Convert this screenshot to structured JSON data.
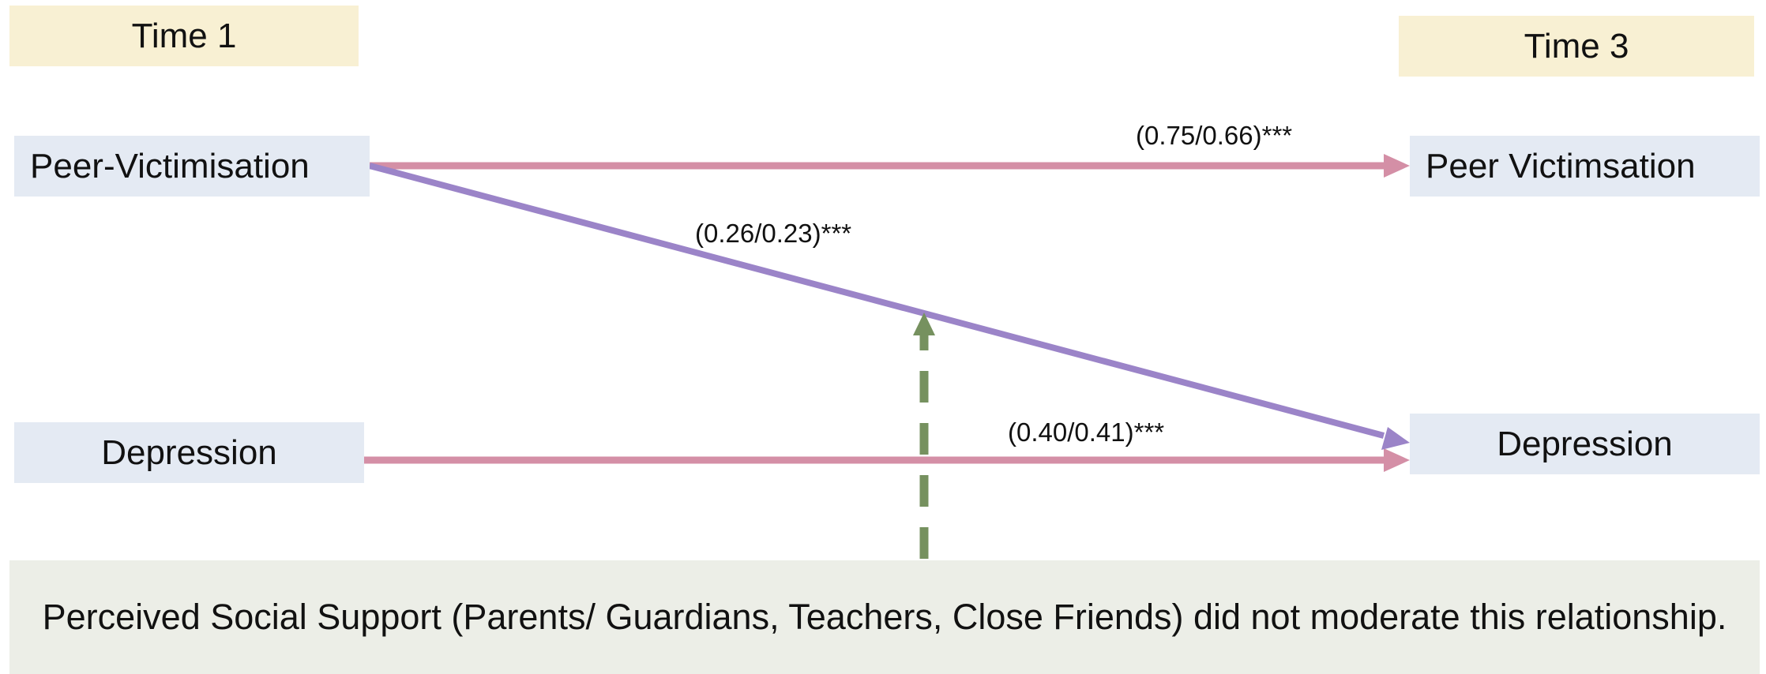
{
  "labels": {
    "time1": "Time 1",
    "time3": "Time 3"
  },
  "variables": {
    "peer_victimisation_t1": "Peer-Victimisation",
    "depression_t1": "Depression",
    "peer_victimisation_t3": "Peer Victimsation",
    "depression_t3": "Depression"
  },
  "paths": {
    "peer_to_peer": "(0.75/0.66)***",
    "peer_to_depression": "(0.26/0.23)***",
    "depression_to_depression": "(0.40/0.41)***"
  },
  "moderator_note": "Perceived Social Support (Parents/ Guardians, Teachers, Close Friends) did not moderate this relationship.",
  "colors": {
    "stability_arrow": "#d48fa6",
    "cross_lag_arrow": "#9b84c8",
    "moderator_arrow": "#76915f",
    "time_box": "#f8f0d3",
    "variable_box": "#e4eaf3",
    "note_box": "#eceee7"
  }
}
